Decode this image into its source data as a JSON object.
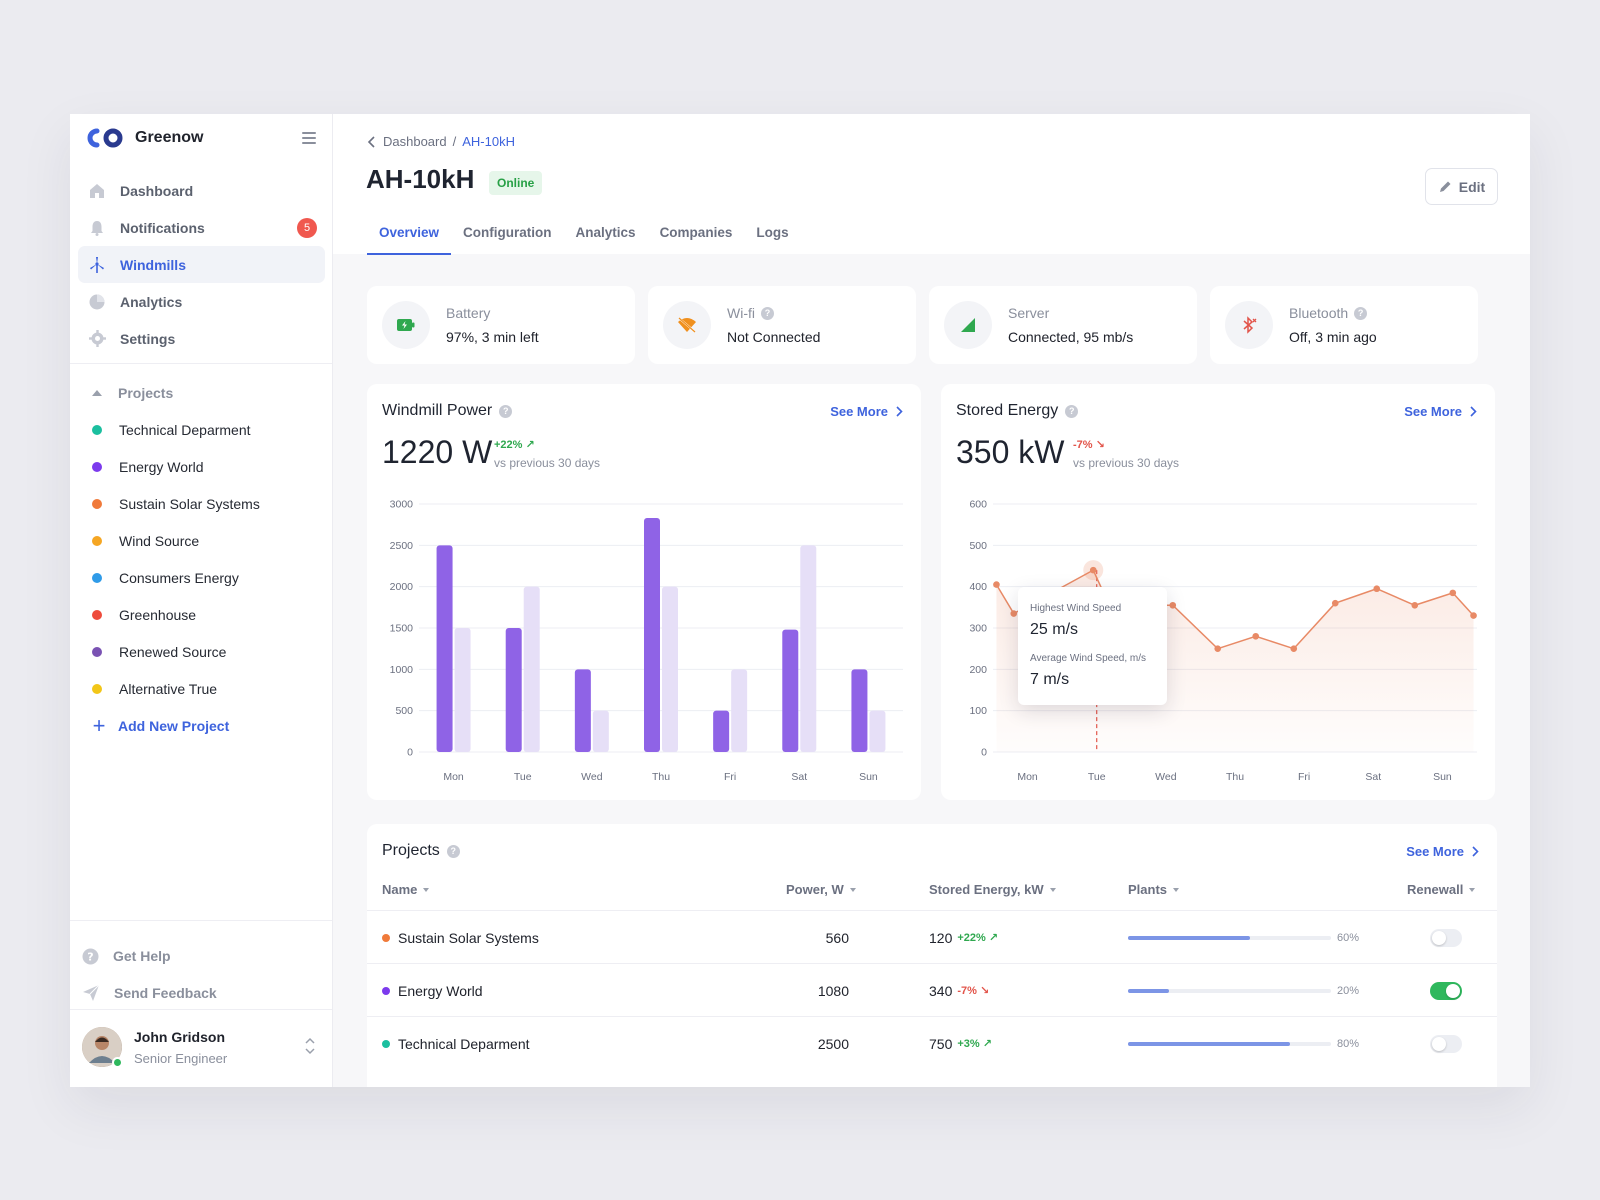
{
  "brand": {
    "name": "Greenow"
  },
  "nav": [
    {
      "label": "Dashboard",
      "icon": "home-icon"
    },
    {
      "label": "Notifications",
      "icon": "bell-icon",
      "badge": "5"
    },
    {
      "label": "Windmills",
      "icon": "windmill-icon",
      "active": true
    },
    {
      "label": "Analytics",
      "icon": "pie-chart-icon"
    },
    {
      "label": "Settings",
      "icon": "gear-icon"
    }
  ],
  "projects_nav": {
    "heading": "Projects",
    "items": [
      {
        "label": "Technical Deparment",
        "color": "#1bbf9f"
      },
      {
        "label": "Energy World",
        "color": "#7c3aed"
      },
      {
        "label": "Sustain Solar Systems",
        "color": "#f07a3a"
      },
      {
        "label": "Wind Source",
        "color": "#f5a623"
      },
      {
        "label": "Consumers Energy",
        "color": "#2f9be8"
      },
      {
        "label": "Greenhouse",
        "color": "#ee4b3b"
      },
      {
        "label": "Renewed Source",
        "color": "#7a52b3"
      },
      {
        "label": "Alternative True",
        "color": "#f2c618"
      }
    ],
    "add_label": "Add New Project"
  },
  "footer_nav": {
    "help": "Get Help",
    "feedback": "Send Feedback"
  },
  "user": {
    "name": "John Gridson",
    "role": "Senior Engineer"
  },
  "header": {
    "breadcrumb_root": "Dashboard",
    "breadcrumb_sep": "/",
    "breadcrumb_current": "AH-10kH",
    "title": "AH-10kH",
    "status": "Online",
    "edit_label": "Edit",
    "tabs": [
      "Overview",
      "Configuration",
      "Analytics",
      "Companies",
      "Logs"
    ]
  },
  "status_cards": [
    {
      "label": "Battery",
      "value": "97%, 3 min left",
      "icon": "battery-icon",
      "help": false
    },
    {
      "label": "Wi-fi",
      "value": "Not Connected",
      "icon": "wifi-off-icon",
      "help": true
    },
    {
      "label": "Server",
      "value": "Connected, 95 mb/s",
      "icon": "signal-icon",
      "help": false
    },
    {
      "label": "Bluetooth",
      "value": "Off, 3 min ago",
      "icon": "bluetooth-off-icon",
      "help": true
    }
  ],
  "power_card": {
    "title": "Windmill Power",
    "see_more": "See More",
    "value": "1220 W",
    "delta": "+22%",
    "vs": "vs previous 30 days"
  },
  "energy_card": {
    "title": "Stored Energy",
    "see_more": "See More",
    "value": "350 kW",
    "delta": "-7%",
    "vs": "vs previous 30 days",
    "tooltip": {
      "label1": "Highest Wind Speed",
      "value1": "25 m/s",
      "label2": "Average Wind Speed, m/s",
      "value2": "7 m/s"
    }
  },
  "chart_data": [
    {
      "type": "bar",
      "title": "Windmill Power",
      "categories": [
        "Mon",
        "Tue",
        "Wed",
        "Thu",
        "Fri",
        "Sat",
        "Sun"
      ],
      "series": [
        {
          "values": [
            2500,
            1500,
            1000,
            2830,
            500,
            1480,
            1000
          ],
          "color": "#8f63e6"
        },
        {
          "values": [
            1500,
            2000,
            500,
            2000,
            1000,
            2500,
            500
          ],
          "color": "#e6dff7"
        }
      ],
      "ylim": [
        0,
        3000
      ],
      "yticks": [
        0,
        500,
        1000,
        1500,
        2000,
        2500,
        3000
      ],
      "grid": true
    },
    {
      "type": "area",
      "title": "Stored Energy",
      "categories": [
        "Mon",
        "Tue",
        "Wed",
        "Thu",
        "Fri",
        "Sat",
        "Sun"
      ],
      "x": [
        -0.45,
        -0.2,
        0.95,
        1.1,
        1.65,
        2.1,
        2.75,
        3.3,
        3.85,
        4.45,
        5.05,
        5.6,
        6.15,
        6.45
      ],
      "values": [
        405,
        335,
        440,
        385,
        355,
        355,
        250,
        280,
        250,
        360,
        395,
        355,
        385,
        330
      ],
      "color": "#e88a66",
      "ylim": [
        0,
        600
      ],
      "yticks": [
        0,
        100,
        200,
        300,
        400,
        500,
        600
      ],
      "highlight_category": "Tue",
      "grid": true
    }
  ],
  "projects_table": {
    "title": "Projects",
    "see_more": "See More",
    "columns": [
      "Name",
      "Power, W",
      "Stored Energy, kW",
      "Plants",
      "Renewall"
    ],
    "rows": [
      {
        "name": "Sustain Solar Systems",
        "color": "#f07a3a",
        "power": "560",
        "energy": "120",
        "delta": "+22%",
        "delta_dir": "up",
        "plants_pct": 60,
        "plants_label": "60%",
        "renewall": false
      },
      {
        "name": "Energy World",
        "color": "#7c3aed",
        "power": "1080",
        "energy": "340",
        "delta": "-7%",
        "delta_dir": "down",
        "plants_pct": 20,
        "plants_label": "20%",
        "renewall": true
      },
      {
        "name": "Technical Deparment",
        "color": "#1bbf9f",
        "power": "2500",
        "energy": "750",
        "delta": "+3%",
        "delta_dir": "up",
        "plants_pct": 80,
        "plants_label": "80%",
        "renewall": false
      }
    ]
  }
}
